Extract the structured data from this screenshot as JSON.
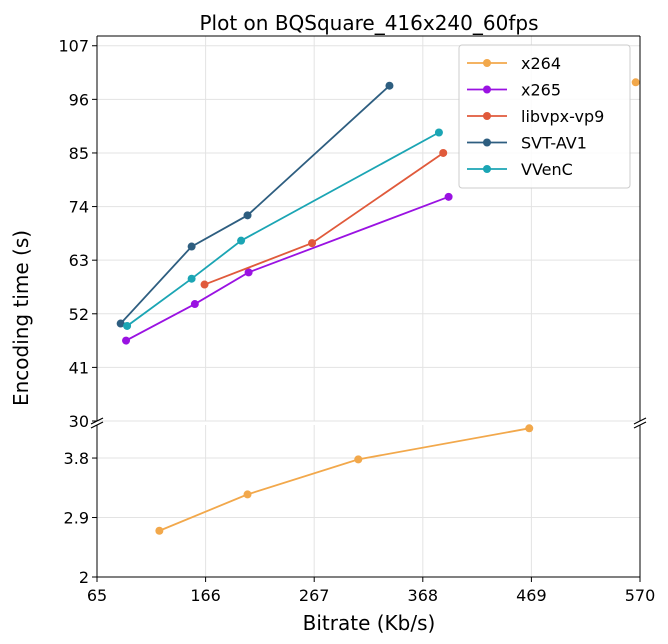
{
  "chart_data": {
    "type": "line",
    "title": "Plot on BQSquare_416x240_60fps",
    "xlabel": "Bitrate (Kb/s)",
    "ylabel": "Encoding time (s)",
    "broken_y_axis": true,
    "xlim": [
      65,
      570
    ],
    "x_ticks": [
      "65",
      "166",
      "267",
      "368",
      "469",
      "570"
    ],
    "upper_panel": {
      "ylim": [
        30,
        109
      ],
      "y_ticks": [
        "30",
        "41",
        "52",
        "63",
        "74",
        "85",
        "96",
        "107"
      ]
    },
    "lower_panel": {
      "ylim": [
        2,
        4.3
      ],
      "y_ticks": [
        "2",
        "2.9",
        "3.8"
      ]
    },
    "grid": true,
    "legend_position": "top-right",
    "series": [
      {
        "name": "x264",
        "color": "#f2a84b",
        "panel": "lower",
        "x": [
          123,
          205,
          308,
          467,
          566
        ],
        "y": [
          2.7,
          3.25,
          3.78,
          4.25,
          99.5
        ]
      },
      {
        "name": "x265",
        "color": "#9a12e2",
        "panel": "upper",
        "x": [
          92,
          156,
          206,
          392
        ],
        "y": [
          46.5,
          54.0,
          60.5,
          76.0
        ]
      },
      {
        "name": "libvpx-vp9",
        "color": "#e05a3b",
        "panel": "upper",
        "x": [
          165,
          265,
          387
        ],
        "y": [
          58.0,
          66.5,
          85.0
        ]
      },
      {
        "name": "SVT-AV1",
        "color": "#2e5e80",
        "panel": "upper",
        "x": [
          87,
          153,
          205,
          337
        ],
        "y": [
          50.0,
          65.8,
          72.2,
          98.8
        ]
      },
      {
        "name": "VVenC",
        "color": "#1ba5b4",
        "panel": "upper",
        "x": [
          93,
          153,
          199,
          383
        ],
        "y": [
          49.5,
          59.2,
          67.0,
          89.2
        ]
      }
    ]
  }
}
